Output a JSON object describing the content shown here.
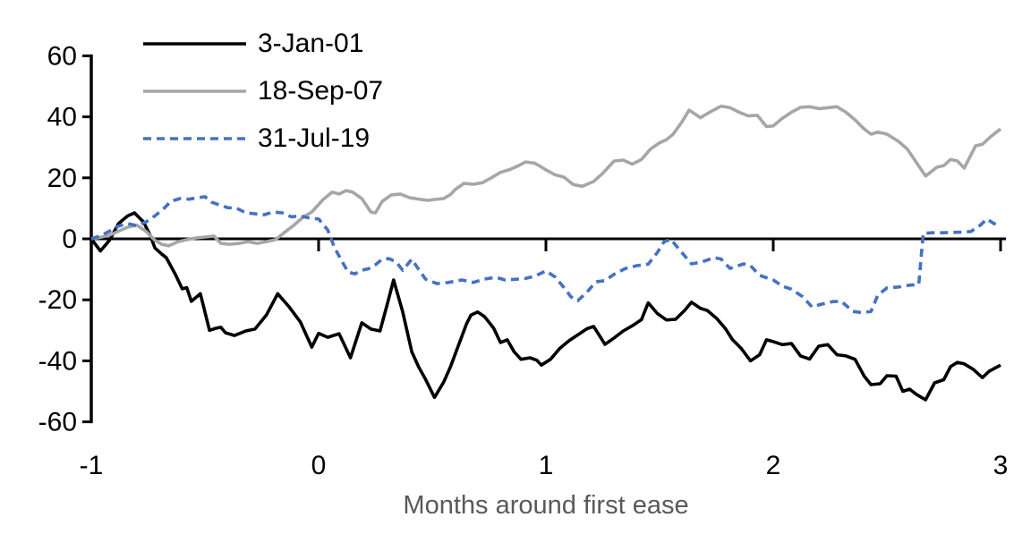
{
  "chart_data": {
    "type": "line",
    "title": "",
    "xlabel": "Months around first ease",
    "ylabel": "",
    "xlim": [
      -1,
      3
    ],
    "ylim": [
      -60,
      60
    ],
    "x_ticks": [
      -1,
      0,
      1,
      2,
      3
    ],
    "y_ticks": [
      60,
      40,
      20,
      0,
      -20,
      -40,
      -60
    ],
    "grid": false,
    "legend_position": "top-left",
    "axis_color": "#000000",
    "axis_title_color": "#595959",
    "series": [
      {
        "name": "3-Jan-01",
        "color": "#000000",
        "style": "solid",
        "points": [
          [
            -1.0,
            0
          ],
          [
            -0.96,
            -4
          ],
          [
            -0.92,
            -0.5
          ],
          [
            -0.88,
            5
          ],
          [
            -0.84,
            7.5
          ],
          [
            -0.81,
            8.5
          ],
          [
            -0.77,
            5.5
          ],
          [
            -0.74,
            1
          ],
          [
            -0.72,
            -3
          ],
          [
            -0.69,
            -5
          ],
          [
            -0.67,
            -6.2
          ],
          [
            -0.63,
            -11.7
          ],
          [
            -0.6,
            -16.4
          ],
          [
            -0.58,
            -16
          ],
          [
            -0.56,
            -20.5
          ],
          [
            -0.52,
            -18
          ],
          [
            -0.48,
            -30
          ],
          [
            -0.45,
            -29.3
          ],
          [
            -0.43,
            -29
          ],
          [
            -0.41,
            -30.8
          ],
          [
            -0.37,
            -31.7
          ],
          [
            -0.32,
            -30.2
          ],
          [
            -0.28,
            -29.6
          ],
          [
            -0.23,
            -25
          ],
          [
            -0.18,
            -18
          ],
          [
            -0.13,
            -22.3
          ],
          [
            -0.08,
            -27.3
          ],
          [
            -0.03,
            -35.5
          ],
          [
            0.0,
            -31
          ],
          [
            0.04,
            -32.3
          ],
          [
            0.09,
            -31.1
          ],
          [
            0.14,
            -39
          ],
          [
            0.19,
            -27.5
          ],
          [
            0.23,
            -29.6
          ],
          [
            0.27,
            -30.2
          ],
          [
            0.3,
            -22
          ],
          [
            0.33,
            -13.5
          ],
          [
            0.37,
            -24
          ],
          [
            0.41,
            -37
          ],
          [
            0.44,
            -42
          ],
          [
            0.47,
            -46
          ],
          [
            0.51,
            -52
          ],
          [
            0.55,
            -47
          ],
          [
            0.58,
            -42
          ],
          [
            0.61,
            -36
          ],
          [
            0.65,
            -28
          ],
          [
            0.67,
            -25
          ],
          [
            0.7,
            -24
          ],
          [
            0.73,
            -25.5
          ],
          [
            0.77,
            -29.3
          ],
          [
            0.8,
            -34
          ],
          [
            0.83,
            -33.1
          ],
          [
            0.86,
            -37
          ],
          [
            0.89,
            -39.5
          ],
          [
            0.93,
            -39
          ],
          [
            0.96,
            -39.8
          ],
          [
            0.98,
            -41.4
          ],
          [
            1.02,
            -39.5
          ],
          [
            1.06,
            -36
          ],
          [
            1.1,
            -33.5
          ],
          [
            1.14,
            -31.5
          ],
          [
            1.18,
            -29.5
          ],
          [
            1.21,
            -28.7
          ],
          [
            1.26,
            -34.6
          ],
          [
            1.3,
            -32.5
          ],
          [
            1.34,
            -30.2
          ],
          [
            1.38,
            -28.5
          ],
          [
            1.42,
            -26.5
          ],
          [
            1.45,
            -21
          ],
          [
            1.49,
            -24.5
          ],
          [
            1.53,
            -26.6
          ],
          [
            1.57,
            -26.4
          ],
          [
            1.61,
            -23.5
          ],
          [
            1.64,
            -20.8
          ],
          [
            1.68,
            -22.8
          ],
          [
            1.71,
            -23.5
          ],
          [
            1.75,
            -26
          ],
          [
            1.79,
            -29.5
          ],
          [
            1.82,
            -33
          ],
          [
            1.86,
            -36
          ],
          [
            1.9,
            -40
          ],
          [
            1.94,
            -38
          ],
          [
            1.97,
            -33.1
          ],
          [
            2.0,
            -33.7
          ],
          [
            2.04,
            -34.7
          ],
          [
            2.08,
            -34.3
          ],
          [
            2.12,
            -38.4
          ],
          [
            2.16,
            -39.4
          ],
          [
            2.2,
            -35.2
          ],
          [
            2.24,
            -34.7
          ],
          [
            2.28,
            -38
          ],
          [
            2.32,
            -38.4
          ],
          [
            2.36,
            -39.5
          ],
          [
            2.4,
            -45
          ],
          [
            2.43,
            -47.8
          ],
          [
            2.47,
            -47.5
          ],
          [
            2.5,
            -44.9
          ],
          [
            2.54,
            -45
          ],
          [
            2.57,
            -50
          ],
          [
            2.6,
            -49.3
          ],
          [
            2.63,
            -51
          ],
          [
            2.67,
            -52.8
          ],
          [
            2.71,
            -47.2
          ],
          [
            2.75,
            -46.2
          ],
          [
            2.78,
            -41.9
          ],
          [
            2.81,
            -40.5
          ],
          [
            2.84,
            -41
          ],
          [
            2.88,
            -42.8
          ],
          [
            2.92,
            -45.5
          ],
          [
            2.95,
            -43.4
          ],
          [
            3.0,
            -41.4
          ]
        ]
      },
      {
        "name": "18-Sep-07",
        "color": "#A6A6A6",
        "style": "solid",
        "points": [
          [
            -1.0,
            0
          ],
          [
            -0.96,
            0.5
          ],
          [
            -0.92,
            1.2
          ],
          [
            -0.88,
            2.5
          ],
          [
            -0.84,
            3.8
          ],
          [
            -0.8,
            4.5
          ],
          [
            -0.76,
            2.5
          ],
          [
            -0.72,
            -0.5
          ],
          [
            -0.69,
            -1.8
          ],
          [
            -0.66,
            -2.3
          ],
          [
            -0.62,
            -1
          ],
          [
            -0.58,
            -0.3
          ],
          [
            -0.54,
            0.3
          ],
          [
            -0.5,
            0.6
          ],
          [
            -0.46,
            0.9
          ],
          [
            -0.43,
            -1.5
          ],
          [
            -0.39,
            -1.8
          ],
          [
            -0.35,
            -1.5
          ],
          [
            -0.31,
            -0.9
          ],
          [
            -0.27,
            -1.5
          ],
          [
            -0.23,
            -0.9
          ],
          [
            -0.19,
            -0.3
          ],
          [
            -0.15,
            2.1
          ],
          [
            -0.11,
            4.4
          ],
          [
            -0.07,
            7
          ],
          [
            -0.03,
            8.8
          ],
          [
            0.02,
            12.9
          ],
          [
            0.06,
            15.3
          ],
          [
            0.09,
            14.7
          ],
          [
            0.12,
            15.8
          ],
          [
            0.15,
            15.3
          ],
          [
            0.19,
            13.2
          ],
          [
            0.23,
            8.8
          ],
          [
            0.25,
            8.5
          ],
          [
            0.28,
            12.3
          ],
          [
            0.32,
            14.4
          ],
          [
            0.36,
            14.7
          ],
          [
            0.4,
            13.5
          ],
          [
            0.45,
            12.9
          ],
          [
            0.48,
            12.6
          ],
          [
            0.51,
            12.9
          ],
          [
            0.55,
            13.2
          ],
          [
            0.58,
            14.5
          ],
          [
            0.6,
            16.1
          ],
          [
            0.64,
            18.2
          ],
          [
            0.68,
            17.9
          ],
          [
            0.72,
            18.4
          ],
          [
            0.76,
            20
          ],
          [
            0.8,
            21.8
          ],
          [
            0.84,
            22.7
          ],
          [
            0.88,
            24
          ],
          [
            0.91,
            25.2
          ],
          [
            0.95,
            24.8
          ],
          [
            0.97,
            24
          ],
          [
            1.0,
            22.6
          ],
          [
            1.04,
            21
          ],
          [
            1.08,
            20.2
          ],
          [
            1.12,
            17.8
          ],
          [
            1.16,
            17.2
          ],
          [
            1.21,
            18.8
          ],
          [
            1.25,
            21.5
          ],
          [
            1.3,
            25.5
          ],
          [
            1.34,
            25.8
          ],
          [
            1.38,
            24.5
          ],
          [
            1.42,
            26
          ],
          [
            1.46,
            29.4
          ],
          [
            1.5,
            31.5
          ],
          [
            1.53,
            32.5
          ],
          [
            1.56,
            34.3
          ],
          [
            1.6,
            38.5
          ],
          [
            1.63,
            42.2
          ],
          [
            1.68,
            39.7
          ],
          [
            1.72,
            41.5
          ],
          [
            1.77,
            43.5
          ],
          [
            1.81,
            43
          ],
          [
            1.85,
            41.5
          ],
          [
            1.89,
            40.3
          ],
          [
            1.93,
            40.5
          ],
          [
            1.97,
            36.8
          ],
          [
            2.0,
            37
          ],
          [
            2.04,
            39.5
          ],
          [
            2.08,
            41.5
          ],
          [
            2.12,
            43.1
          ],
          [
            2.16,
            43.3
          ],
          [
            2.2,
            42.7
          ],
          [
            2.24,
            43
          ],
          [
            2.28,
            43.3
          ],
          [
            2.32,
            41.5
          ],
          [
            2.36,
            39
          ],
          [
            2.4,
            36
          ],
          [
            2.43,
            34.3
          ],
          [
            2.46,
            35
          ],
          [
            2.5,
            34.3
          ],
          [
            2.55,
            32
          ],
          [
            2.59,
            29.4
          ],
          [
            2.63,
            25
          ],
          [
            2.67,
            20.6
          ],
          [
            2.72,
            23.5
          ],
          [
            2.75,
            24
          ],
          [
            2.78,
            26
          ],
          [
            2.81,
            25.5
          ],
          [
            2.84,
            23.2
          ],
          [
            2.89,
            30.5
          ],
          [
            2.92,
            31
          ],
          [
            2.96,
            33.7
          ],
          [
            3.0,
            36
          ]
        ]
      },
      {
        "name": "31-Jul-19",
        "color": "#4472C4",
        "style": "dashed",
        "points": [
          [
            -1.0,
            0
          ],
          [
            -0.96,
            1
          ],
          [
            -0.92,
            2.5
          ],
          [
            -0.88,
            4.2
          ],
          [
            -0.84,
            5
          ],
          [
            -0.8,
            4.3
          ],
          [
            -0.76,
            5.5
          ],
          [
            -0.72,
            7.5
          ],
          [
            -0.68,
            10
          ],
          [
            -0.65,
            12.3
          ],
          [
            -0.61,
            13.2
          ],
          [
            -0.57,
            13
          ],
          [
            -0.53,
            13.5
          ],
          [
            -0.5,
            13.8
          ],
          [
            -0.47,
            12
          ],
          [
            -0.44,
            11.2
          ],
          [
            -0.4,
            10.2
          ],
          [
            -0.36,
            10
          ],
          [
            -0.32,
            8.5
          ],
          [
            -0.28,
            8.2
          ],
          [
            -0.24,
            7.9
          ],
          [
            -0.2,
            8.8
          ],
          [
            -0.16,
            8.5
          ],
          [
            -0.12,
            7.2
          ],
          [
            -0.08,
            7.5
          ],
          [
            -0.04,
            6.8
          ],
          [
            0.0,
            6.5
          ],
          [
            0.04,
            2.9
          ],
          [
            0.07,
            -2.9
          ],
          [
            0.1,
            -7
          ],
          [
            0.13,
            -10.9
          ],
          [
            0.16,
            -11.5
          ],
          [
            0.19,
            -10.3
          ],
          [
            0.22,
            -9.8
          ],
          [
            0.25,
            -8.5
          ],
          [
            0.28,
            -6.7
          ],
          [
            0.31,
            -6.5
          ],
          [
            0.34,
            -7.5
          ],
          [
            0.37,
            -10.3
          ],
          [
            0.41,
            -6.7
          ],
          [
            0.44,
            -10
          ],
          [
            0.47,
            -13.2
          ],
          [
            0.52,
            -14.7
          ],
          [
            0.57,
            -14.3
          ],
          [
            0.63,
            -13.5
          ],
          [
            0.68,
            -14.3
          ],
          [
            0.73,
            -13.2
          ],
          [
            0.78,
            -12.6
          ],
          [
            0.82,
            -13.5
          ],
          [
            0.88,
            -13.2
          ],
          [
            0.91,
            -13
          ],
          [
            0.95,
            -12.3
          ],
          [
            1.0,
            -10.5
          ],
          [
            1.04,
            -12.5
          ],
          [
            1.08,
            -16
          ],
          [
            1.11,
            -19
          ],
          [
            1.14,
            -20.3
          ],
          [
            1.18,
            -17.5
          ],
          [
            1.22,
            -14.1
          ],
          [
            1.26,
            -13.7
          ],
          [
            1.3,
            -11.6
          ],
          [
            1.35,
            -9.7
          ],
          [
            1.4,
            -8.8
          ],
          [
            1.45,
            -8.3
          ],
          [
            1.49,
            -4.5
          ],
          [
            1.52,
            -0.9
          ],
          [
            1.55,
            -0.2
          ],
          [
            1.59,
            -3.8
          ],
          [
            1.64,
            -8.2
          ],
          [
            1.68,
            -7.7
          ],
          [
            1.74,
            -6.2
          ],
          [
            1.77,
            -6.6
          ],
          [
            1.81,
            -9.7
          ],
          [
            1.87,
            -8.2
          ],
          [
            1.9,
            -8.8
          ],
          [
            1.94,
            -12
          ],
          [
            2.0,
            -13.5
          ],
          [
            2.04,
            -15.5
          ],
          [
            2.08,
            -16.5
          ],
          [
            2.13,
            -19
          ],
          [
            2.17,
            -22.3
          ],
          [
            2.21,
            -21.5
          ],
          [
            2.26,
            -20.6
          ],
          [
            2.3,
            -20.5
          ],
          [
            2.35,
            -23.8
          ],
          [
            2.39,
            -24.2
          ],
          [
            2.43,
            -23.8
          ],
          [
            2.46,
            -18.5
          ],
          [
            2.5,
            -16.1
          ],
          [
            2.55,
            -15.8
          ],
          [
            2.6,
            -15.2
          ],
          [
            2.64,
            -15
          ],
          [
            2.66,
            1.8
          ],
          [
            2.7,
            2
          ],
          [
            2.75,
            2
          ],
          [
            2.79,
            2.1
          ],
          [
            2.83,
            2.2
          ],
          [
            2.87,
            2.4
          ],
          [
            2.91,
            4.4
          ],
          [
            2.94,
            6.5
          ],
          [
            2.97,
            5
          ],
          [
            3.0,
            4.3
          ]
        ]
      }
    ]
  }
}
